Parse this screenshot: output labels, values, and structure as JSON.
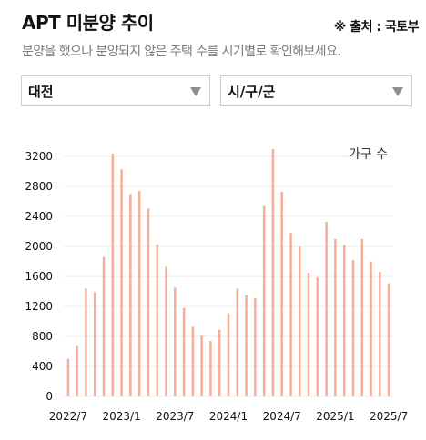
{
  "header": {
    "title": "APT 미분양 추이",
    "source": "※ 출처 : 국토부",
    "subtitle": "분양을 했으나 분양되지 않은 주택 수를 시기별로 확인해보세요."
  },
  "filters": {
    "region": "대전",
    "district": "시/구/군"
  },
  "colors": {
    "bar": "#f7ae99",
    "grid": "#eeeeee"
  },
  "chart_data": {
    "type": "bar",
    "unit_label": "가구 수",
    "categories": [
      "2022/7",
      "2022/8",
      "2022/9",
      "2022/10",
      "2022/11",
      "2022/12",
      "2023/1",
      "2023/2",
      "2023/3",
      "2023/4",
      "2023/5",
      "2023/6",
      "2023/7",
      "2023/8",
      "2023/9",
      "2023/10",
      "2023/11",
      "2023/12",
      "2024/1",
      "2024/2",
      "2024/3",
      "2024/4",
      "2024/5",
      "2024/6",
      "2024/7",
      "2024/8",
      "2024/9",
      "2024/10",
      "2024/11",
      "2024/12",
      "2025/1",
      "2025/2",
      "2025/3",
      "2025/4",
      "2025/5",
      "2025/6",
      "2025/7"
    ],
    "values": [
      500,
      670,
      1440,
      1390,
      1860,
      3240,
      3030,
      2700,
      2740,
      2510,
      2030,
      1730,
      1450,
      1180,
      930,
      810,
      740,
      890,
      1110,
      1440,
      1350,
      1310,
      2540,
      3300,
      2730,
      2180,
      2000,
      1650,
      1590,
      2330,
      2100,
      2020,
      1820,
      2100,
      1800,
      1660,
      1510
    ],
    "xticks": [
      "2022/7",
      "2023/1",
      "2023/7",
      "2024/1",
      "2024/7",
      "2025/1",
      "2025/7"
    ],
    "yticks": [
      0,
      400,
      800,
      1200,
      1600,
      2000,
      2400,
      2800,
      3200
    ],
    "ylim": [
      0,
      3300
    ],
    "grid": true
  }
}
